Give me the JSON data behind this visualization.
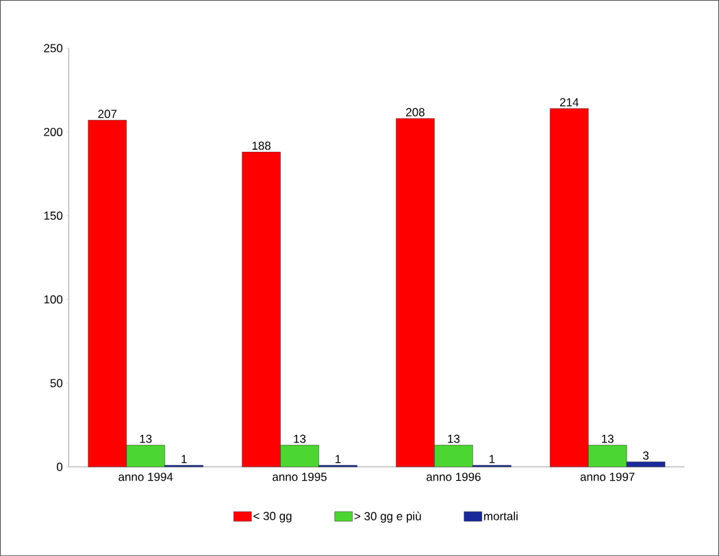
{
  "chart_data": {
    "type": "bar",
    "categories": [
      "anno 1994",
      "anno 1995",
      "anno 1996",
      "anno 1997"
    ],
    "series": [
      {
        "name": "< 30 gg",
        "color": "#ff0000",
        "values": [
          207,
          188,
          208,
          214
        ]
      },
      {
        "name": "> 30 gg e più",
        "color": "#4cd631",
        "values": [
          13,
          13,
          13,
          13
        ]
      },
      {
        "name": "mortali",
        "color": "#1a2a9a",
        "values": [
          1,
          1,
          1,
          3
        ]
      }
    ],
    "ylim": [
      0,
      250
    ],
    "yticks": [
      0,
      50,
      100,
      150,
      200,
      250
    ],
    "data_labels": true,
    "grid": false,
    "legend": "bottom"
  }
}
